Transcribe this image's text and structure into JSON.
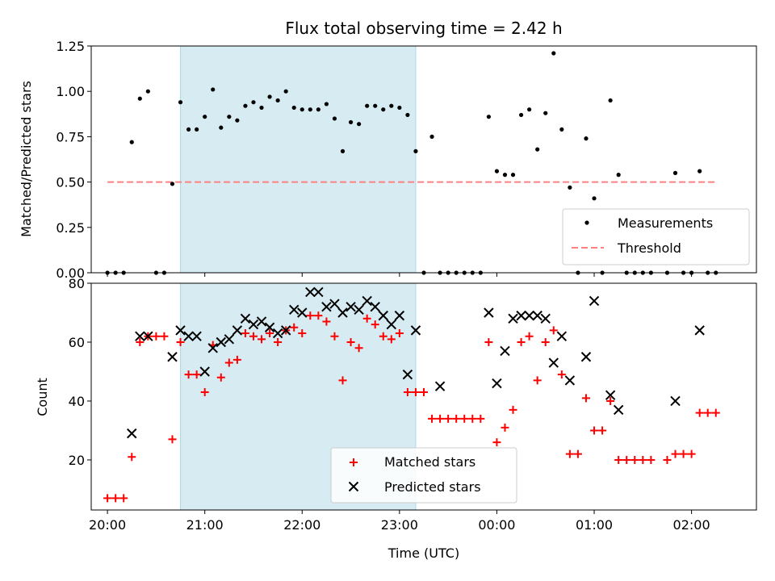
{
  "chart_data": [
    {
      "type": "scatter",
      "title": "Flux total observing time = 2.42 h",
      "xlabel": "",
      "ylabel": "Matched/Predicted stars",
      "ylim": [
        0,
        1.25
      ],
      "xlim": [
        "19:50",
        "02:40"
      ],
      "yticks": [
        "0.00",
        "0.25",
        "0.50",
        "0.75",
        "1.00",
        "1.25"
      ],
      "shaded_range": [
        "20:45",
        "23:10"
      ],
      "grid": false,
      "legend": "lower-right",
      "series": [
        {
          "name": "Measurements",
          "marker": "dot",
          "color": "#000000",
          "points": [
            [
              "20:00",
              0.0
            ],
            [
              "20:05",
              0.0
            ],
            [
              "20:10",
              0.0
            ],
            [
              "20:15",
              0.72
            ],
            [
              "20:20",
              0.96
            ],
            [
              "20:25",
              1.0
            ],
            [
              "20:30",
              0.0
            ],
            [
              "20:35",
              0.0
            ],
            [
              "20:40",
              0.49
            ],
            [
              "20:45",
              0.94
            ],
            [
              "20:50",
              0.79
            ],
            [
              "20:55",
              0.79
            ],
            [
              "21:00",
              0.86
            ],
            [
              "21:05",
              1.01
            ],
            [
              "21:10",
              0.8
            ],
            [
              "21:15",
              0.86
            ],
            [
              "21:20",
              0.84
            ],
            [
              "21:25",
              0.92
            ],
            [
              "21:30",
              0.94
            ],
            [
              "21:35",
              0.91
            ],
            [
              "21:40",
              0.97
            ],
            [
              "21:45",
              0.95
            ],
            [
              "21:50",
              1.0
            ],
            [
              "21:55",
              0.91
            ],
            [
              "22:00",
              0.9
            ],
            [
              "22:05",
              0.9
            ],
            [
              "22:10",
              0.9
            ],
            [
              "22:15",
              0.93
            ],
            [
              "22:20",
              0.85
            ],
            [
              "22:25",
              0.67
            ],
            [
              "22:30",
              0.83
            ],
            [
              "22:35",
              0.82
            ],
            [
              "22:40",
              0.92
            ],
            [
              "22:45",
              0.92
            ],
            [
              "22:50",
              0.9
            ],
            [
              "22:55",
              0.92
            ],
            [
              "23:00",
              0.91
            ],
            [
              "23:05",
              0.87
            ],
            [
              "23:10",
              0.67
            ],
            [
              "23:15",
              0.0
            ],
            [
              "23:20",
              0.75
            ],
            [
              "23:25",
              0.0
            ],
            [
              "23:30",
              0.0
            ],
            [
              "23:35",
              0.0
            ],
            [
              "23:40",
              0.0
            ],
            [
              "23:45",
              0.0
            ],
            [
              "23:50",
              0.0
            ],
            [
              "23:55",
              0.86
            ],
            [
              "00:00",
              0.56
            ],
            [
              "00:05",
              0.54
            ],
            [
              "00:10",
              0.54
            ],
            [
              "00:15",
              0.87
            ],
            [
              "00:20",
              0.9
            ],
            [
              "00:25",
              0.68
            ],
            [
              "00:30",
              0.88
            ],
            [
              "00:35",
              1.21
            ],
            [
              "00:40",
              0.79
            ],
            [
              "00:45",
              0.47
            ],
            [
              "00:50",
              0.0
            ],
            [
              "00:55",
              0.74
            ],
            [
              "01:00",
              0.41
            ],
            [
              "01:05",
              0.0
            ],
            [
              "01:10",
              0.95
            ],
            [
              "01:15",
              0.54
            ],
            [
              "01:20",
              0.0
            ],
            [
              "01:25",
              0.0
            ],
            [
              "01:30",
              0.0
            ],
            [
              "01:35",
              0.0
            ],
            [
              "01:45",
              0.0
            ],
            [
              "01:50",
              0.55
            ],
            [
              "01:55",
              0.0
            ],
            [
              "02:00",
              0.0
            ],
            [
              "02:05",
              0.56
            ],
            [
              "02:10",
              0.0
            ],
            [
              "02:15",
              0.0
            ]
          ]
        },
        {
          "name": "Threshold",
          "marker": "dashed-line",
          "color": "#ff8080",
          "points": [
            [
              "20:00",
              0.5
            ],
            [
              "02:15",
              0.5
            ]
          ]
        }
      ]
    },
    {
      "type": "scatter",
      "title": "",
      "xlabel": "Time (UTC)",
      "ylabel": "Count",
      "ylim": [
        3,
        80
      ],
      "xlim": [
        "19:50",
        "02:40"
      ],
      "yticks": [
        "20",
        "40",
        "60",
        "80"
      ],
      "xticks": [
        "20:00",
        "21:00",
        "22:00",
        "23:00",
        "00:00",
        "01:00",
        "02:00"
      ],
      "shaded_range": [
        "20:45",
        "23:10"
      ],
      "grid": false,
      "legend": "lower-center",
      "series": [
        {
          "name": "Matched stars",
          "marker": "plus",
          "color": "#ff0000",
          "points": [
            [
              "20:00",
              7
            ],
            [
              "20:05",
              7
            ],
            [
              "20:10",
              7
            ],
            [
              "20:15",
              21
            ],
            [
              "20:20",
              60
            ],
            [
              "20:25",
              62
            ],
            [
              "20:30",
              62
            ],
            [
              "20:35",
              62
            ],
            [
              "20:40",
              27
            ],
            [
              "20:45",
              60
            ],
            [
              "20:50",
              49
            ],
            [
              "20:55",
              49
            ],
            [
              "21:00",
              43
            ],
            [
              "21:05",
              59
            ],
            [
              "21:10",
              48
            ],
            [
              "21:15",
              53
            ],
            [
              "21:20",
              54
            ],
            [
              "21:25",
              63
            ],
            [
              "21:30",
              62
            ],
            [
              "21:35",
              61
            ],
            [
              "21:40",
              63
            ],
            [
              "21:45",
              60
            ],
            [
              "21:50",
              64
            ],
            [
              "21:55",
              65
            ],
            [
              "22:00",
              63
            ],
            [
              "22:05",
              69
            ],
            [
              "22:10",
              69
            ],
            [
              "22:15",
              67
            ],
            [
              "22:20",
              62
            ],
            [
              "22:25",
              47
            ],
            [
              "22:30",
              60
            ],
            [
              "22:35",
              58
            ],
            [
              "22:40",
              68
            ],
            [
              "22:45",
              66
            ],
            [
              "22:50",
              62
            ],
            [
              "22:55",
              61
            ],
            [
              "23:00",
              63
            ],
            [
              "23:05",
              43
            ],
            [
              "23:10",
              43
            ],
            [
              "23:15",
              43
            ],
            [
              "23:20",
              34
            ],
            [
              "23:25",
              34
            ],
            [
              "23:30",
              34
            ],
            [
              "23:35",
              34
            ],
            [
              "23:40",
              34
            ],
            [
              "23:45",
              34
            ],
            [
              "23:50",
              34
            ],
            [
              "23:55",
              60
            ],
            [
              "00:00",
              26
            ],
            [
              "00:05",
              31
            ],
            [
              "00:10",
              37
            ],
            [
              "00:15",
              60
            ],
            [
              "00:20",
              62
            ],
            [
              "00:25",
              47
            ],
            [
              "00:30",
              60
            ],
            [
              "00:35",
              64
            ],
            [
              "00:40",
              49
            ],
            [
              "00:45",
              22
            ],
            [
              "00:50",
              22
            ],
            [
              "00:55",
              41
            ],
            [
              "01:00",
              30
            ],
            [
              "01:05",
              30
            ],
            [
              "01:10",
              40
            ],
            [
              "01:15",
              20
            ],
            [
              "01:20",
              20
            ],
            [
              "01:25",
              20
            ],
            [
              "01:30",
              20
            ],
            [
              "01:35",
              20
            ],
            [
              "01:45",
              20
            ],
            [
              "01:50",
              22
            ],
            [
              "01:55",
              22
            ],
            [
              "02:00",
              22
            ],
            [
              "02:05",
              36
            ],
            [
              "02:10",
              36
            ],
            [
              "02:15",
              36
            ]
          ]
        },
        {
          "name": "Predicted stars",
          "marker": "x",
          "color": "#000000",
          "points": [
            [
              "20:15",
              29
            ],
            [
              "20:20",
              62
            ],
            [
              "20:25",
              62
            ],
            [
              "20:40",
              55
            ],
            [
              "20:45",
              64
            ],
            [
              "20:50",
              62
            ],
            [
              "20:55",
              62
            ],
            [
              "21:00",
              50
            ],
            [
              "21:05",
              58
            ],
            [
              "21:10",
              60
            ],
            [
              "21:15",
              61
            ],
            [
              "21:20",
              64
            ],
            [
              "21:25",
              68
            ],
            [
              "21:30",
              66
            ],
            [
              "21:35",
              67
            ],
            [
              "21:40",
              65
            ],
            [
              "21:45",
              63
            ],
            [
              "21:50",
              64
            ],
            [
              "21:55",
              71
            ],
            [
              "22:00",
              70
            ],
            [
              "22:05",
              77
            ],
            [
              "22:10",
              77
            ],
            [
              "22:15",
              72
            ],
            [
              "22:20",
              73
            ],
            [
              "22:25",
              70
            ],
            [
              "22:30",
              72
            ],
            [
              "22:35",
              71
            ],
            [
              "22:40",
              74
            ],
            [
              "22:45",
              72
            ],
            [
              "22:50",
              69
            ],
            [
              "22:55",
              66
            ],
            [
              "23:00",
              69
            ],
            [
              "23:05",
              49
            ],
            [
              "23:10",
              64
            ],
            [
              "23:25",
              45
            ],
            [
              "23:55",
              70
            ],
            [
              "00:00",
              46
            ],
            [
              "00:05",
              57
            ],
            [
              "00:10",
              68
            ],
            [
              "00:15",
              69
            ],
            [
              "00:20",
              69
            ],
            [
              "00:25",
              69
            ],
            [
              "00:30",
              68
            ],
            [
              "00:35",
              53
            ],
            [
              "00:40",
              62
            ],
            [
              "00:45",
              47
            ],
            [
              "00:55",
              55
            ],
            [
              "01:00",
              74
            ],
            [
              "01:10",
              42
            ],
            [
              "01:15",
              37
            ],
            [
              "01:50",
              40
            ],
            [
              "02:05",
              64
            ]
          ]
        }
      ]
    }
  ]
}
